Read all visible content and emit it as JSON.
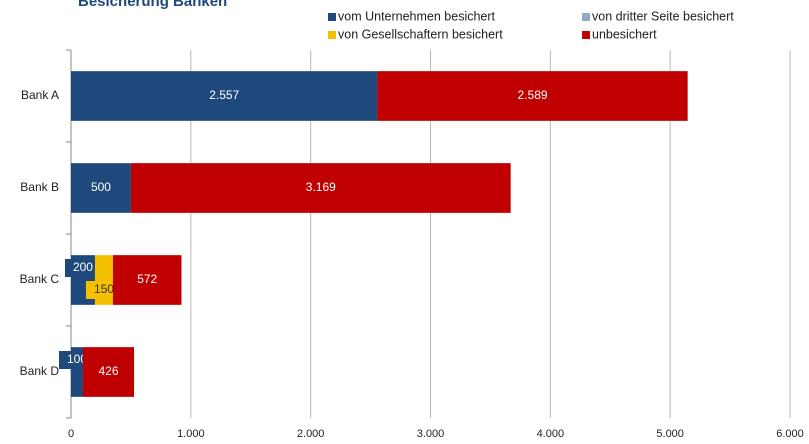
{
  "chart_data": {
    "type": "stacked_hbar",
    "title": "Besicherung Banken",
    "categories": [
      "Bank A",
      "Bank B",
      "Bank C",
      "Bank D"
    ],
    "series": [
      {
        "name": "vom Unternehmen besichert",
        "color": "#1f497d",
        "values": [
          2557,
          500,
          200,
          100
        ],
        "value_labels": [
          "2.557",
          "500",
          "200",
          "100"
        ]
      },
      {
        "name": "von dritter Seite besichert",
        "color": "#8eaac8",
        "values": [
          null,
          null,
          null,
          null
        ]
      },
      {
        "name": "von Gesellschaftern besichert",
        "color": "#f5c000",
        "values": [
          null,
          null,
          150,
          null
        ],
        "value_labels": [
          null,
          null,
          "150",
          null
        ]
      },
      {
        "name": "unbesichert",
        "color": "#c00000",
        "values": [
          2589,
          3169,
          572,
          426
        ],
        "value_labels": [
          "2.589",
          "3.169",
          "572",
          "426"
        ]
      }
    ],
    "xlim": [
      0,
      6000
    ],
    "xticks": [
      0,
      {
        "value": 1000,
        "label": "1.000"
      },
      {
        "value": 2000,
        "label": "2.000"
      },
      {
        "value": 3000,
        "label": "3.000"
      },
      {
        "value": 4000,
        "label": "4.000"
      },
      {
        "value": 5000,
        "label": "5.000"
      },
      {
        "value": 6000,
        "label": "6.000"
      }
    ],
    "grid": true
  }
}
